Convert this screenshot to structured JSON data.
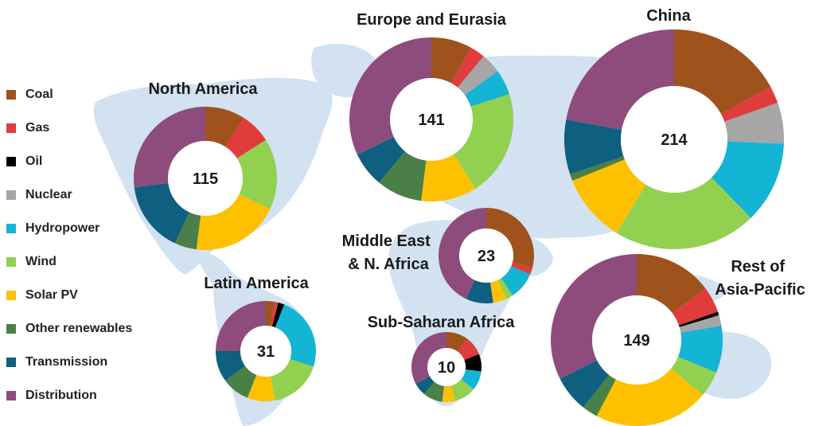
{
  "chart_data": {
    "type": "pie",
    "categories": [
      "Coal",
      "Gas",
      "Oil",
      "Nuclear",
      "Hydropower",
      "Wind",
      "Solar PV",
      "Other renewables",
      "Transmission",
      "Distribution"
    ],
    "colors": [
      "#a0521d",
      "#e03c3c",
      "#000000",
      "#a6a6a6",
      "#14b4d4",
      "#92d050",
      "#ffc000",
      "#4a8048",
      "#0f5f80",
      "#8e4c7c"
    ],
    "legend_position": "left",
    "series": [
      {
        "name": "North America",
        "total": "115",
        "values": [
          9,
          7,
          0,
          0,
          0,
          16,
          20,
          5,
          16,
          27
        ]
      },
      {
        "name": "Europe and Eurasia",
        "total": "141",
        "values": [
          8,
          3,
          0,
          4,
          5,
          21,
          11,
          9,
          7,
          32
        ]
      },
      {
        "name": "China",
        "total": "214",
        "values": [
          17,
          2.5,
          0,
          6,
          12,
          21,
          10,
          1,
          8,
          22
        ]
      },
      {
        "name": "Middle East\n& N. Africa",
        "total": "23",
        "values": [
          25,
          2,
          0,
          0,
          8,
          2,
          4,
          0,
          8,
          37
        ]
      },
      {
        "name": "Latin America",
        "total": "31",
        "values": [
          3,
          1,
          2,
          0,
          24,
          17,
          9,
          9,
          10,
          25
        ]
      },
      {
        "name": "Sub-Saharan Africa",
        "total": "10",
        "values": [
          10,
          9,
          8,
          0,
          9,
          10,
          6,
          9,
          6,
          33
        ]
      },
      {
        "name": "Rest of\nAsia-Pacific",
        "total": "149",
        "values": [
          15,
          5,
          0.7,
          2,
          9,
          5,
          22,
          3,
          7,
          33
        ]
      }
    ]
  }
}
